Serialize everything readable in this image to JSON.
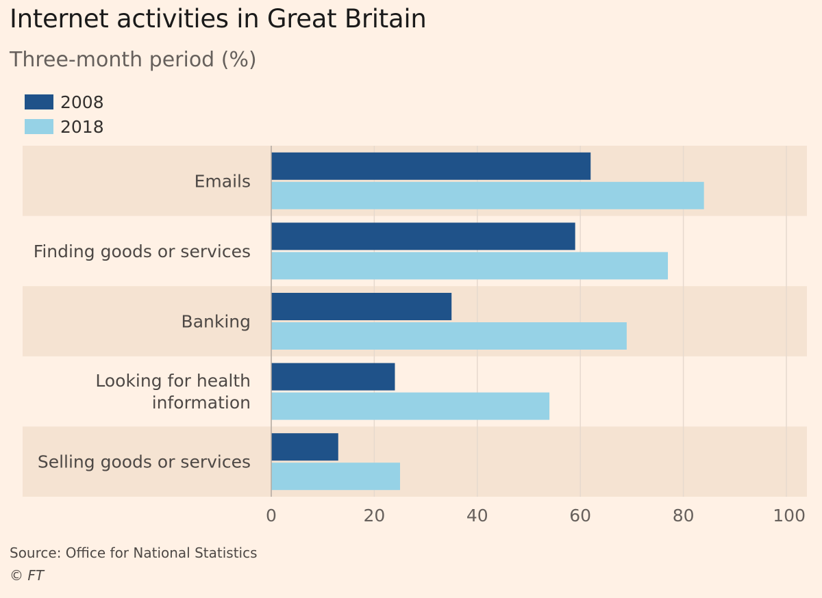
{
  "chart_data": {
    "type": "bar",
    "orientation": "horizontal",
    "title": "Internet activities in Great Britain",
    "subtitle": "Three-month period (%)",
    "categories": [
      "Emails",
      "Finding goods or services",
      "Banking",
      "Looking for health information",
      "Selling goods or services"
    ],
    "series": [
      {
        "name": "2008",
        "color": "#1f5289",
        "values": [
          62,
          59,
          35,
          24,
          13
        ]
      },
      {
        "name": "2018",
        "color": "#96d2e6",
        "values": [
          84,
          77,
          69,
          54,
          25
        ]
      }
    ],
    "xlim": [
      0,
      100
    ],
    "xticks": [
      "0",
      "20",
      "40",
      "60",
      "80",
      "100"
    ],
    "xlabel": "",
    "ylabel": "",
    "grid": true,
    "legend_position": "top-left",
    "band_color": "#f5e3d2"
  },
  "footer": {
    "source": "Source: Office for National Statistics",
    "copyright": "© FT"
  }
}
